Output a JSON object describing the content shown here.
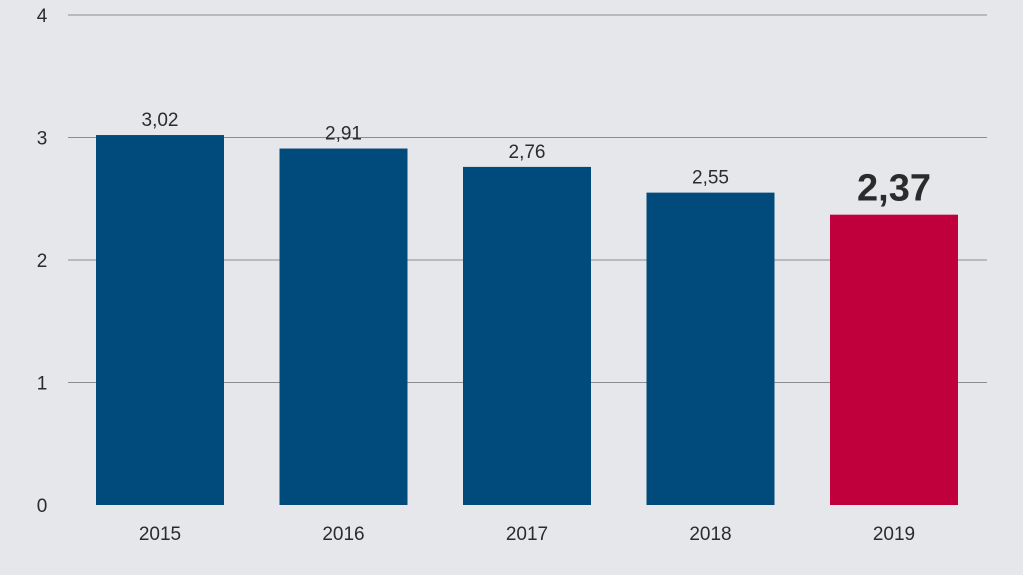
{
  "chart_data": {
    "type": "bar",
    "title": "",
    "xlabel": "",
    "ylabel": "",
    "categories": [
      "2015",
      "2016",
      "2017",
      "2018",
      "2019"
    ],
    "values": [
      3.02,
      2.91,
      2.76,
      2.55,
      2.37
    ],
    "value_labels": [
      "3,02",
      "2,91",
      "2,76",
      "2,55",
      "2,37"
    ],
    "yticks": [
      0,
      1,
      2,
      3,
      4
    ],
    "ytick_labels": [
      "0",
      "1",
      "2",
      "3",
      "4"
    ],
    "ylim": [
      0,
      4
    ],
    "grid": true,
    "legend": "none",
    "highlight_index": 4,
    "colors": {
      "bar": "#004b7c",
      "highlight": "#c0003c",
      "gridline": "#8a8d91",
      "background": "#e6e7ea"
    }
  }
}
